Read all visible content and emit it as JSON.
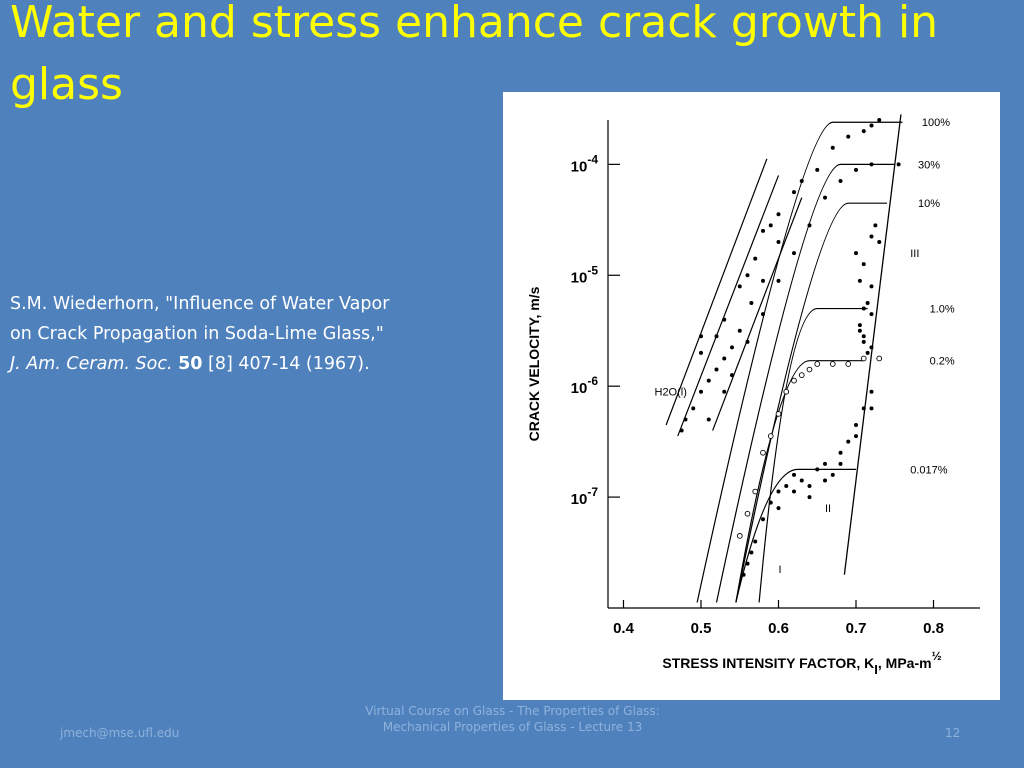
{
  "slide": {
    "title": "Water and stress enhance crack growth in glass",
    "citation": {
      "line1": "S.M. Wiederhorn, \"Influence of Water Vapor",
      "line2": "on Crack Propagation in Soda-Lime Glass,\"",
      "journal": "J. Am. Ceram. Soc.",
      "volume": "50",
      "rest": " [8] 407-14 (1967)."
    },
    "footer": {
      "email": "jmech@mse.ufl.edu",
      "course": "Virtual Course on Glass - The Properties of Glass:    Mechanical Properties of Glass - Lecture 13",
      "page": "12"
    }
  },
  "chart_data": {
    "type": "scatter",
    "title": "",
    "xlabel": "STRESS INTENSITY FACTOR, K",
    "xlabel_sub": "I",
    "xlabel_unit": ", MPa-m",
    "xlabel_exp": "½",
    "ylabel": "CRACK VELOCITY, m/s",
    "x_ticks": [
      "0.4",
      "0.5",
      "0.6",
      "0.7",
      "0.8"
    ],
    "y_ticks": [
      {
        "base": "10",
        "exp": "-4",
        "value": -4
      },
      {
        "base": "10",
        "exp": "-5",
        "value": -5
      },
      {
        "base": "10",
        "exp": "-6",
        "value": -6
      },
      {
        "base": "10",
        "exp": "-7",
        "value": -7
      }
    ],
    "xlim": [
      0.38,
      0.86
    ],
    "ylim_log10": [
      -8.0,
      -3.6
    ],
    "log_scale_y": true,
    "region_labels": [
      {
        "text": "I",
        "x": 0.6,
        "y": -7.65
      },
      {
        "text": "II",
        "x": 0.66,
        "y": -7.1
      },
      {
        "text": "III",
        "x": 0.77,
        "y": -4.8
      }
    ],
    "series": [
      {
        "name": "100%",
        "plateau": -3.62,
        "marker": "filled",
        "points": [
          [
            0.5,
            -5.7
          ],
          [
            0.52,
            -5.55
          ],
          [
            0.53,
            -5.4
          ],
          [
            0.55,
            -5.1
          ],
          [
            0.57,
            -4.85
          ],
          [
            0.58,
            -4.6
          ],
          [
            0.6,
            -4.45
          ],
          [
            0.62,
            -4.25
          ],
          [
            0.65,
            -4.05
          ],
          [
            0.67,
            -3.85
          ],
          [
            0.69,
            -3.75
          ],
          [
            0.71,
            -3.7
          ],
          [
            0.72,
            -3.65
          ],
          [
            0.73,
            -3.6
          ],
          [
            0.5,
            -5.55
          ],
          [
            0.56,
            -5.0
          ],
          [
            0.59,
            -4.55
          ],
          [
            0.63,
            -4.15
          ]
        ]
      },
      {
        "name": "30%",
        "plateau": -4.0,
        "marker": "filled",
        "points": [
          [
            0.51,
            -6.3
          ],
          [
            0.53,
            -6.05
          ],
          [
            0.54,
            -5.9
          ],
          [
            0.56,
            -5.6
          ],
          [
            0.58,
            -5.35
          ],
          [
            0.6,
            -5.05
          ],
          [
            0.62,
            -4.8
          ],
          [
            0.64,
            -4.55
          ],
          [
            0.66,
            -4.3
          ],
          [
            0.68,
            -4.15
          ],
          [
            0.7,
            -4.05
          ],
          [
            0.72,
            -4.0
          ],
          [
            0.755,
            -4.0
          ]
        ]
      },
      {
        "name": "10%",
        "plateau": -4.35,
        "marker": "filled",
        "points": [
          [
            0.7,
            -4.8
          ],
          [
            0.71,
            -4.9
          ],
          [
            0.705,
            -5.05
          ],
          [
            0.72,
            -5.1
          ],
          [
            0.715,
            -5.25
          ],
          [
            0.72,
            -4.65
          ],
          [
            0.73,
            -4.7
          ],
          [
            0.725,
            -4.55
          ]
        ]
      },
      {
        "name": "1.0%",
        "plateau": -5.3,
        "marker": "filled",
        "points": [
          [
            0.705,
            -5.5
          ],
          [
            0.71,
            -5.55
          ],
          [
            0.71,
            -5.6
          ],
          [
            0.715,
            -5.7
          ],
          [
            0.72,
            -5.65
          ],
          [
            0.705,
            -5.45
          ],
          [
            0.72,
            -5.35
          ],
          [
            0.71,
            -5.3
          ]
        ]
      },
      {
        "name": "0.2%",
        "plateau": -5.77,
        "marker": "open",
        "points": [
          [
            0.55,
            -7.35
          ],
          [
            0.56,
            -7.15
          ],
          [
            0.57,
            -6.95
          ],
          [
            0.58,
            -6.6
          ],
          [
            0.59,
            -6.45
          ],
          [
            0.6,
            -6.25
          ],
          [
            0.61,
            -6.05
          ],
          [
            0.62,
            -5.95
          ],
          [
            0.63,
            -5.9
          ],
          [
            0.64,
            -5.85
          ],
          [
            0.65,
            -5.8
          ],
          [
            0.67,
            -5.8
          ],
          [
            0.69,
            -5.8
          ],
          [
            0.71,
            -5.75
          ],
          [
            0.73,
            -5.75
          ]
        ]
      },
      {
        "name": "0.017%",
        "plateau": -6.75,
        "marker": "filled",
        "points": [
          [
            0.555,
            -7.7
          ],
          [
            0.56,
            -7.6
          ],
          [
            0.565,
            -7.5
          ],
          [
            0.57,
            -7.4
          ],
          [
            0.58,
            -7.2
          ],
          [
            0.59,
            -7.05
          ],
          [
            0.6,
            -6.95
          ],
          [
            0.61,
            -6.9
          ],
          [
            0.62,
            -6.8
          ],
          [
            0.63,
            -6.85
          ],
          [
            0.64,
            -6.9
          ],
          [
            0.65,
            -6.75
          ],
          [
            0.66,
            -6.7
          ],
          [
            0.67,
            -6.8
          ],
          [
            0.68,
            -6.6
          ],
          [
            0.69,
            -6.5
          ],
          [
            0.7,
            -6.35
          ],
          [
            0.71,
            -6.2
          ],
          [
            0.72,
            -6.05
          ],
          [
            0.6,
            -7.1
          ],
          [
            0.62,
            -6.95
          ],
          [
            0.64,
            -7.0
          ],
          [
            0.66,
            -6.85
          ],
          [
            0.68,
            -6.7
          ],
          [
            0.7,
            -6.45
          ],
          [
            0.72,
            -6.2
          ]
        ]
      },
      {
        "name": "H2O(l)",
        "plateau": null,
        "marker": "filled",
        "points": [
          [
            0.475,
            -6.4
          ],
          [
            0.49,
            -6.2
          ],
          [
            0.5,
            -6.05
          ],
          [
            0.52,
            -5.85
          ],
          [
            0.53,
            -5.75
          ],
          [
            0.55,
            -5.5
          ],
          [
            0.565,
            -5.25
          ],
          [
            0.58,
            -5.05
          ],
          [
            0.6,
            -4.7
          ],
          [
            0.48,
            -6.3
          ],
          [
            0.51,
            -5.95
          ],
          [
            0.54,
            -5.65
          ]
        ]
      }
    ],
    "series_label_pos": [
      {
        "name": "100%",
        "x": 0.785,
        "y": -3.62
      },
      {
        "name": "30%",
        "x": 0.78,
        "y": -4.0
      },
      {
        "name": "10%",
        "x": 0.78,
        "y": -4.35
      },
      {
        "name": "1.0%",
        "x": 0.795,
        "y": -5.3
      },
      {
        "name": "0.2%",
        "x": 0.795,
        "y": -5.77
      },
      {
        "name": "0.017%",
        "x": 0.77,
        "y": -6.75
      },
      {
        "name": "H2O(l)",
        "x": 0.44,
        "y": -6.05
      }
    ]
  }
}
